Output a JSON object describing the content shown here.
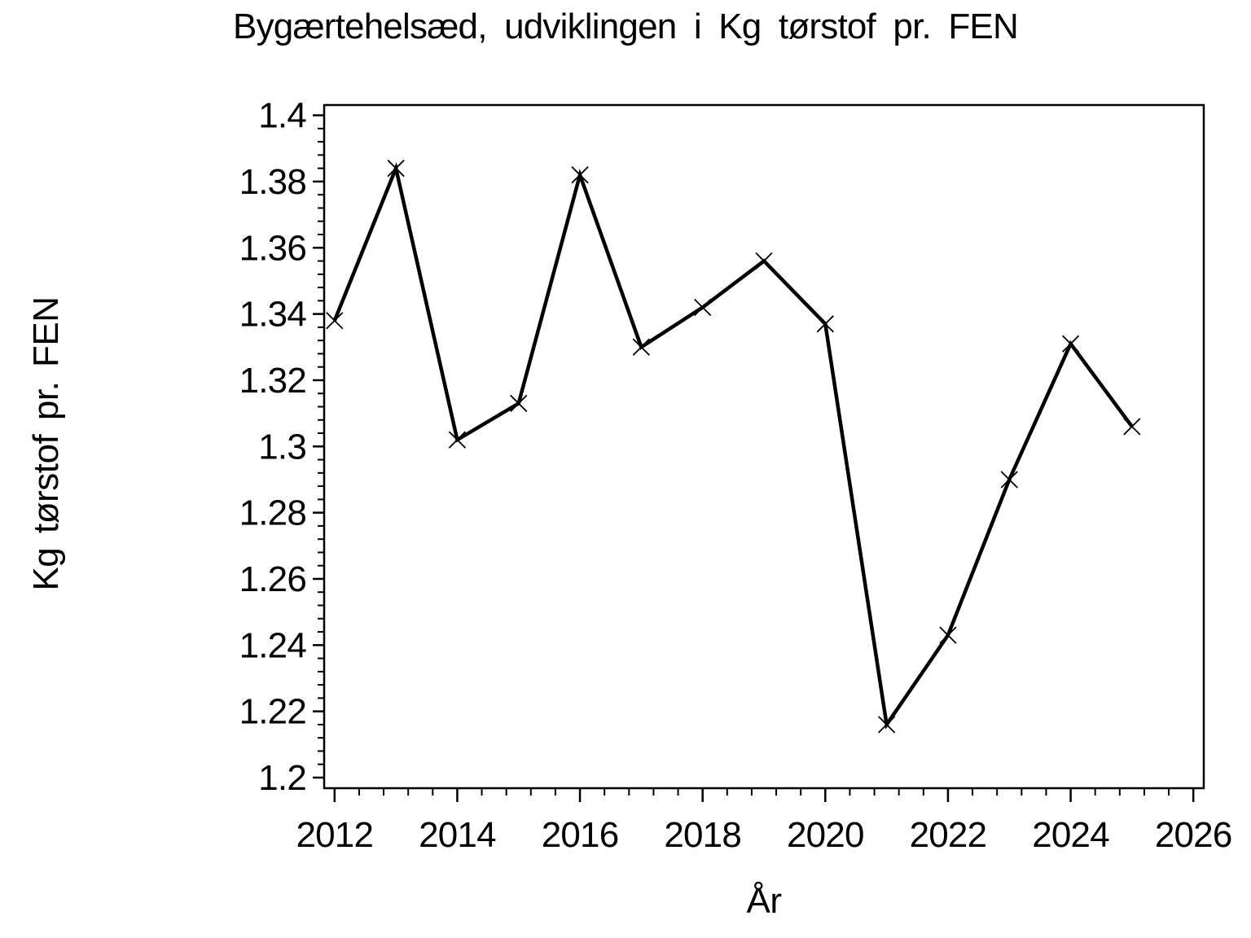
{
  "title": "Bygærtehelsæd, udviklingen i Kg tørstof pr. FEN",
  "chart_data": {
    "type": "line",
    "title": "Bygærtehelsæd, udviklingen i Kg tørstof pr. FEN",
    "xlabel": "År",
    "ylabel": "Kg tørstof pr. FEN",
    "x": [
      2012,
      2013,
      2014,
      2015,
      2016,
      2017,
      2018,
      2019,
      2020,
      2021,
      2022,
      2023,
      2024,
      2025
    ],
    "values": [
      1.338,
      1.384,
      1.302,
      1.313,
      1.382,
      1.33,
      1.342,
      1.356,
      1.337,
      1.216,
      1.243,
      1.29,
      1.331,
      1.306
    ],
    "marker": "x",
    "line_color": "#000000",
    "background_color": "#ffffff",
    "grid": "off",
    "legend": "none",
    "xlim": [
      2011.83,
      2026.17
    ],
    "ylim": [
      1.1968,
      1.4031
    ],
    "x_ticks": {
      "major_step": 2,
      "minor_step": 0.4,
      "labels": [
        "2012",
        "2014",
        "2016",
        "2018",
        "2020",
        "2022",
        "2024",
        "2026"
      ]
    },
    "y_ticks": {
      "major_step": 0.02,
      "minor_step": 0.004,
      "labels": [
        "1.2",
        "1.22",
        "1.24",
        "1.26",
        "1.28",
        "1.3",
        "1.32",
        "1.34",
        "1.36",
        "1.38",
        "1.4"
      ]
    }
  }
}
